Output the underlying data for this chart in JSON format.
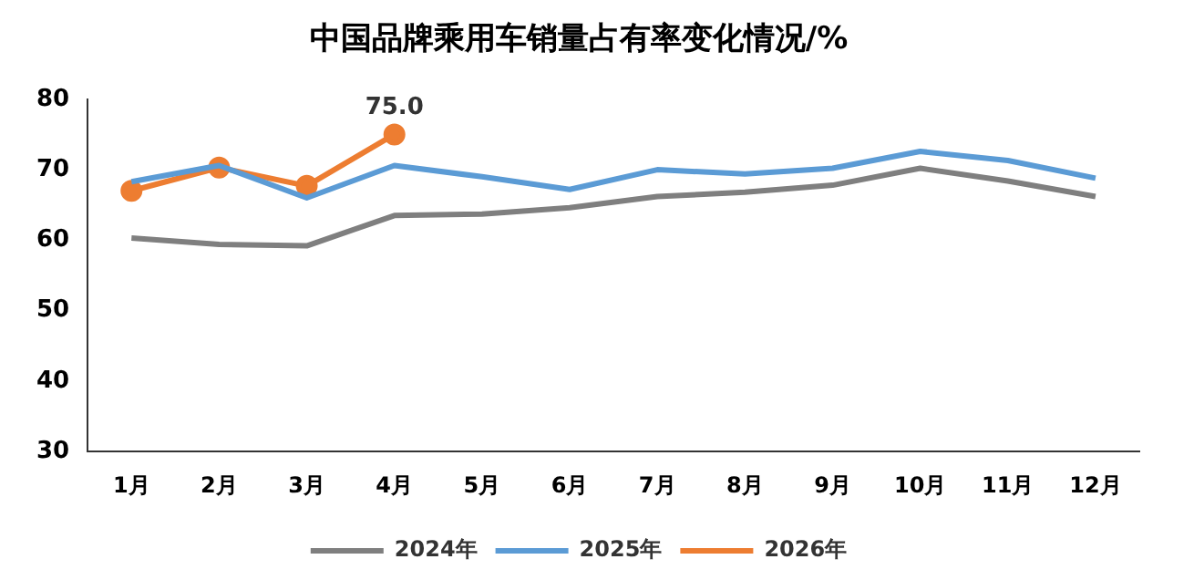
{
  "chart_data": {
    "type": "line",
    "title": "中国品牌乘用车销量占有率变化情况/%",
    "categories": [
      "1月",
      "2月",
      "3月",
      "4月",
      "5月",
      "6月",
      "7月",
      "8月",
      "9月",
      "10月",
      "11月",
      "12月"
    ],
    "series": [
      {
        "name": "2024年",
        "color": "#7f7f7f",
        "marker": "none",
        "values": [
          60.3,
          59.4,
          59.2,
          63.5,
          63.7,
          64.6,
          66.2,
          66.8,
          67.8,
          70.2,
          68.4,
          66.2
        ]
      },
      {
        "name": "2025年",
        "color": "#5b9bd5",
        "marker": "none",
        "values": [
          68.3,
          70.6,
          66,
          70.6,
          69,
          67.2,
          70,
          69.4,
          70.2,
          72.6,
          71.3,
          68.8
        ]
      },
      {
        "name": "2026年",
        "color": "#ed7d31",
        "marker": "circle",
        "values": [
          67,
          70.3,
          67.7,
          75,
          null,
          null,
          null,
          null,
          null,
          null,
          null,
          null
        ],
        "value_labels": [
          null,
          null,
          null,
          "75.0",
          null,
          null,
          null,
          null,
          null,
          null,
          null,
          null
        ]
      }
    ],
    "ylim": [
      30,
      80
    ],
    "yticks": [
      30,
      40,
      50,
      60,
      70,
      80
    ],
    "grid": false,
    "legend": "bottom"
  }
}
